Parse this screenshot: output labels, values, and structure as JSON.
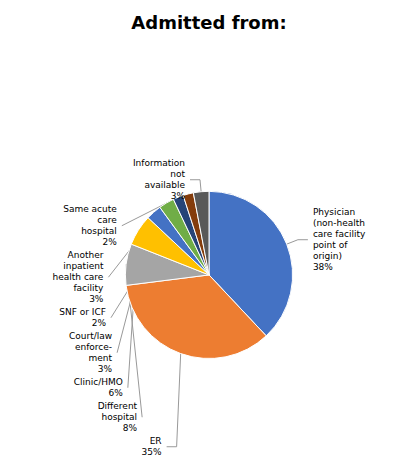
{
  "chart_data": {
    "type": "pie",
    "title": "Admitted from:",
    "categories": [
      "Physician\n(non-health\ncare facility\npoint of\norigin)",
      "ER",
      "Different\nhospital",
      "Clinic/HMO",
      "Court/law\nenforce-\nment",
      "Another\ninpatient\nhealth care\nfacility",
      "Same acute\ncare\nhospital",
      "SNF or ICF",
      "Information\nnot\navailable"
    ],
    "values": [
      38,
      35,
      8,
      6,
      3,
      3,
      2,
      2,
      3
    ],
    "value_labels": [
      "38%",
      "35%",
      "8%",
      "6%",
      "3%",
      "3%",
      "2%",
      "2%",
      "3%"
    ],
    "colors": [
      "#4472C4",
      "#ED7D31",
      "#A5A5A5",
      "#FFC000",
      "#4472C4",
      "#70AD47",
      "#264478",
      "#843C0C",
      "#595959"
    ],
    "data_labels": true
  }
}
